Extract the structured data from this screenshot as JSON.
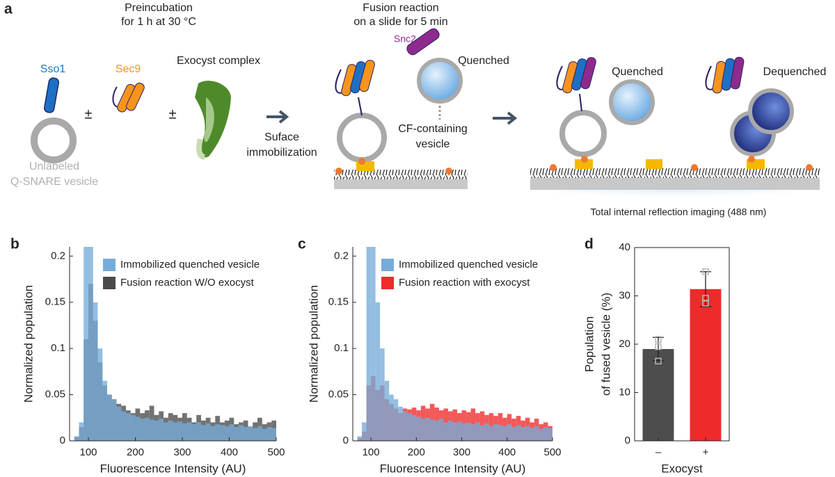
{
  "panel_a": {
    "label": "a",
    "preincubation": [
      "Preincubation",
      "for 1 h at 30 °C"
    ],
    "sso1": "Sso1",
    "sec9": "Sec9",
    "exocyst": "Exocyst complex",
    "plus_minus": [
      "±",
      "±"
    ],
    "unlabeled": [
      "Unlabeled",
      "Q-SNARE vesicle"
    ],
    "immobilization": [
      "Suface",
      "immobilization"
    ],
    "fusion": [
      "Fusion reaction",
      "on a slide for 5 min"
    ],
    "snc2": "Snc2",
    "quenched_1": "Quenched",
    "cf": [
      "CF-containing",
      "vesicle"
    ],
    "quenched_2": "Quenched",
    "dequenched": "Dequenched",
    "tirf": "Total internal reflection imaging (488 nm)"
  },
  "chart_data": [
    {
      "panel": "b",
      "type": "histogram",
      "xlabel": "Fluorescence Intensity (AU)",
      "ylabel": "Normalized population",
      "bins": [
        60,
        70,
        80,
        90,
        100,
        110,
        120,
        130,
        140,
        150,
        160,
        170,
        180,
        190,
        200,
        210,
        220,
        230,
        240,
        250,
        260,
        270,
        280,
        290,
        300,
        310,
        320,
        330,
        340,
        350,
        360,
        370,
        380,
        390,
        400,
        410,
        420,
        430,
        440,
        450,
        460,
        470,
        480,
        490,
        500
      ],
      "series": [
        {
          "name": "Immobilized quenched vesicle",
          "color": "#76acd9",
          "values": [
            0,
            0.005,
            0.02,
            0.21,
            0.21,
            0.15,
            0.1,
            0.065,
            0.05,
            0.045,
            0.037,
            0.032,
            0.03,
            0.028,
            0.026,
            0.024,
            0.025,
            0.023,
            0.022,
            0.024,
            0.02,
            0.022,
            0.02,
            0.021,
            0.019,
            0.02,
            0.018,
            0.02,
            0.017,
            0.019,
            0.016,
            0.018,
            0.017,
            0.016,
            0.018,
            0.015,
            0.017,
            0.015,
            0.016,
            0.014,
            0.016,
            0.013,
            0.015,
            0.014
          ]
        },
        {
          "name": "Fusion reaction W/O exocyst",
          "color": "#4a4a4a",
          "values": [
            0,
            0.004,
            0.015,
            0.11,
            0.17,
            0.13,
            0.085,
            0.06,
            0.05,
            0.045,
            0.04,
            0.038,
            0.033,
            0.03,
            0.035,
            0.03,
            0.033,
            0.038,
            0.028,
            0.032,
            0.025,
            0.03,
            0.028,
            0.025,
            0.03,
            0.025,
            0.02,
            0.028,
            0.022,
            0.025,
            0.02,
            0.027,
            0.02,
            0.022,
            0.025,
            0.018,
            0.02,
            0.022,
            0.015,
            0.02,
            0.025,
            0.018,
            0.02,
            0.022
          ]
        }
      ],
      "alpha": 0.78,
      "xlim": [
        60,
        500
      ],
      "ylim": [
        0,
        0.21
      ],
      "xticks": [
        100,
        200,
        300,
        400,
        500
      ],
      "yticks": [
        0,
        0.05,
        0.1,
        0.15,
        0.2
      ],
      "legend": "upper right"
    },
    {
      "panel": "c",
      "type": "histogram",
      "xlabel": "Fluorescence Intensity (AU)",
      "ylabel": "Normalized population",
      "bins": [
        60,
        70,
        80,
        90,
        100,
        110,
        120,
        130,
        140,
        150,
        160,
        170,
        180,
        190,
        200,
        210,
        220,
        230,
        240,
        250,
        260,
        270,
        280,
        290,
        300,
        310,
        320,
        330,
        340,
        350,
        360,
        370,
        380,
        390,
        400,
        410,
        420,
        430,
        440,
        450,
        460,
        470,
        480,
        490,
        500
      ],
      "series": [
        {
          "name": "Immobilized quenched vesicle",
          "color": "#76acd9",
          "values": [
            0,
            0.005,
            0.02,
            0.21,
            0.21,
            0.15,
            0.1,
            0.065,
            0.05,
            0.045,
            0.037,
            0.032,
            0.03,
            0.028,
            0.026,
            0.024,
            0.025,
            0.023,
            0.022,
            0.024,
            0.02,
            0.022,
            0.02,
            0.021,
            0.019,
            0.02,
            0.018,
            0.02,
            0.017,
            0.019,
            0.016,
            0.018,
            0.017,
            0.016,
            0.018,
            0.015,
            0.017,
            0.015,
            0.016,
            0.014,
            0.016,
            0.013,
            0.015,
            0.014
          ]
        },
        {
          "name": "Fusion reaction with exocyst",
          "color": "#ee2a2a",
          "values": [
            0,
            0.003,
            0.01,
            0.06,
            0.07,
            0.055,
            0.06,
            0.045,
            0.04,
            0.035,
            0.03,
            0.035,
            0.034,
            0.036,
            0.033,
            0.038,
            0.035,
            0.04,
            0.036,
            0.033,
            0.035,
            0.032,
            0.034,
            0.03,
            0.033,
            0.031,
            0.035,
            0.03,
            0.032,
            0.028,
            0.03,
            0.027,
            0.03,
            0.025,
            0.029,
            0.024,
            0.027,
            0.022,
            0.025,
            0.02,
            0.024,
            0.018,
            0.02,
            0.016
          ]
        }
      ],
      "alpha": 0.78,
      "xlim": [
        60,
        500
      ],
      "ylim": [
        0,
        0.21
      ],
      "xticks": [
        100,
        200,
        300,
        400,
        500
      ],
      "yticks": [
        0,
        0.05,
        0.1,
        0.15,
        0.2
      ],
      "legend": "upper right"
    },
    {
      "panel": "d",
      "type": "bar",
      "xlabel": "Exocyst",
      "ylabel": [
        "Population",
        "of fused vesicle (%)"
      ],
      "categories": [
        "–",
        "+"
      ],
      "values": [
        19,
        31.4
      ],
      "errors": [
        2.4,
        3.6
      ],
      "colors": [
        "#4d4d4d",
        "#ee2a2a"
      ],
      "points": [
        [
          21,
          16.5,
          19.5
        ],
        [
          35,
          29.5,
          28.5
        ]
      ],
      "ylim": [
        0,
        40
      ],
      "yticks": [
        0,
        10,
        20,
        30,
        40
      ]
    }
  ]
}
